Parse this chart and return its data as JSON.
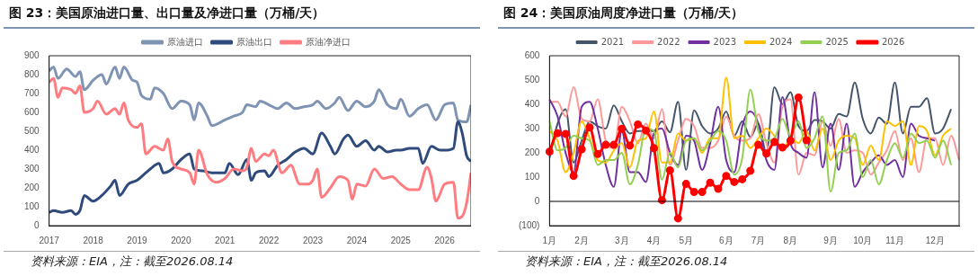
{
  "chart_data": [
    {
      "type": "line",
      "title": "图 23：美国原油进口量、出口量及净进口量（万桶/天）",
      "annotations": [
        "资料来源：EIA，注：截至2026.08.14"
      ],
      "xlim": [
        2017,
        2026.6
      ],
      "xticks": [
        2017,
        2018,
        2019,
        2020,
        2021,
        2022,
        2023,
        2024,
        2025,
        2026
      ],
      "ylim": [
        0,
        900
      ],
      "yticks": [
        0,
        100,
        200,
        300,
        400,
        500,
        600,
        700,
        800,
        900
      ],
      "grid": false,
      "legend": "top",
      "series": [
        {
          "name": "原油进口",
          "color": "#7f93b2",
          "x": [
            2017,
            2017.1,
            2017.2,
            2017.4,
            2017.6,
            2017.7,
            2017.8,
            2018,
            2018.2,
            2018.3,
            2018.5,
            2018.6,
            2018.7,
            2018.9,
            2019,
            2019.1,
            2019.3,
            2019.4,
            2019.6,
            2019.8,
            2020,
            2020.2,
            2020.3,
            2020.4,
            2020.6,
            2020.7,
            2021,
            2021.2,
            2021.4,
            2021.5,
            2021.7,
            2021.8,
            2022,
            2022.2,
            2022.4,
            2022.6,
            2022.8,
            2023,
            2023.1,
            2023.3,
            2023.5,
            2023.6,
            2023.8,
            2024,
            2024.2,
            2024.4,
            2024.5,
            2024.7,
            2024.9,
            2025,
            2025.2,
            2025.4,
            2025.6,
            2025.8,
            2026,
            2026.2,
            2026.3,
            2026.5,
            2026.6
          ],
          "values": [
            820,
            840,
            780,
            830,
            790,
            815,
            720,
            770,
            800,
            750,
            840,
            780,
            840,
            770,
            760,
            690,
            670,
            730,
            700,
            620,
            660,
            640,
            560,
            650,
            580,
            530,
            560,
            580,
            600,
            640,
            630,
            660,
            640,
            620,
            650,
            620,
            630,
            640,
            660,
            620,
            650,
            680,
            610,
            660,
            630,
            660,
            720,
            640,
            620,
            670,
            580,
            620,
            640,
            560,
            640,
            650,
            560,
            550,
            640
          ]
        },
        {
          "name": "原油出口",
          "color": "#2f4b7c",
          "x": [
            2017,
            2017.1,
            2017.3,
            2017.5,
            2017.6,
            2017.7,
            2017.8,
            2018,
            2018.2,
            2018.4,
            2018.5,
            2018.6,
            2018.8,
            2019,
            2019.2,
            2019.3,
            2019.5,
            2019.6,
            2019.8,
            2020,
            2020.2,
            2020.3,
            2020.5,
            2020.7,
            2021,
            2021.1,
            2021.3,
            2021.5,
            2021.6,
            2021.7,
            2021.9,
            2022,
            2022.2,
            2022.4,
            2022.6,
            2022.8,
            2023,
            2023.2,
            2023.4,
            2023.5,
            2023.7,
            2023.8,
            2024,
            2024.2,
            2024.4,
            2024.5,
            2024.7,
            2024.9,
            2025,
            2025.2,
            2025.4,
            2025.5,
            2025.7,
            2025.9,
            2026,
            2026.2,
            2026.3,
            2026.4,
            2026.5,
            2026.6
          ],
          "values": [
            70,
            80,
            70,
            80,
            60,
            80,
            160,
            130,
            160,
            210,
            240,
            160,
            220,
            240,
            280,
            300,
            330,
            280,
            300,
            350,
            380,
            300,
            290,
            280,
            280,
            330,
            270,
            350,
            240,
            280,
            290,
            260,
            320,
            350,
            390,
            410,
            380,
            490,
            420,
            380,
            460,
            480,
            420,
            450,
            400,
            420,
            390,
            400,
            400,
            410,
            410,
            330,
            420,
            400,
            400,
            410,
            550,
            490,
            370,
            340
          ]
        },
        {
          "name": "原油净进口",
          "color": "#ff7c80",
          "x": [
            2017,
            2017.1,
            2017.2,
            2017.3,
            2017.5,
            2017.6,
            2017.7,
            2017.8,
            2018,
            2018.1,
            2018.3,
            2018.5,
            2018.6,
            2018.7,
            2018.8,
            2019,
            2019.1,
            2019.2,
            2019.4,
            2019.6,
            2019.7,
            2019.8,
            2020,
            2020.2,
            2020.3,
            2020.4,
            2020.6,
            2020.8,
            2021,
            2021.2,
            2021.4,
            2021.5,
            2021.6,
            2021.7,
            2021.9,
            2022,
            2022.1,
            2022.3,
            2022.5,
            2022.7,
            2022.9,
            2023,
            2023.1,
            2023.2,
            2023.4,
            2023.6,
            2023.8,
            2023.9,
            2024,
            2024.2,
            2024.4,
            2024.6,
            2024.8,
            2025,
            2025.2,
            2025.4,
            2025.6,
            2025.7,
            2025.8,
            2026,
            2026.2,
            2026.3,
            2026.4,
            2026.5,
            2026.6
          ],
          "values": [
            760,
            780,
            680,
            730,
            720,
            700,
            740,
            600,
            620,
            660,
            590,
            620,
            590,
            650,
            560,
            520,
            540,
            380,
            420,
            400,
            460,
            340,
            300,
            280,
            220,
            400,
            270,
            230,
            250,
            300,
            290,
            310,
            410,
            340,
            380,
            370,
            400,
            280,
            320,
            220,
            220,
            240,
            300,
            150,
            200,
            260,
            240,
            140,
            220,
            210,
            300,
            250,
            260,
            220,
            190,
            190,
            310,
            250,
            130,
            220,
            230,
            40,
            50,
            120,
            280
          ]
        }
      ]
    },
    {
      "type": "line",
      "title": "图 24：美国原油周度净进口量（万桶/天）",
      "annotations": [
        "资料来源：EIA，注：截至2026.08.14"
      ],
      "categories": [
        "1月",
        null,
        null,
        null,
        "2月",
        null,
        null,
        null,
        null,
        "3月",
        null,
        null,
        null,
        "4月",
        null,
        null,
        null,
        "5月",
        null,
        null,
        null,
        null,
        "6月",
        null,
        null,
        null,
        "7月",
        null,
        null,
        null,
        "8月",
        null,
        null,
        null,
        null,
        "9月",
        null,
        null,
        null,
        "10月",
        null,
        null,
        null,
        "11月",
        null,
        null,
        null,
        null,
        "12月",
        null,
        null,
        null
      ],
      "ylim": [
        -100,
        600
      ],
      "yticks": [
        {
          "value": -100,
          "label": "(100)"
        },
        0,
        100,
        200,
        300,
        400,
        500,
        600
      ],
      "grid": false,
      "legend": "top",
      "ref_lines": [
        {
          "axis": "y",
          "value": 0,
          "color": "#000000"
        }
      ],
      "series": [
        {
          "name": "2021",
          "color": "#44546a",
          "values": [
            180,
            320,
            380,
            160,
            250,
            330,
            310,
            300,
            395,
            330,
            280,
            290,
            290,
            290,
            330,
            285,
            410,
            130,
            375,
            310,
            280,
            300,
            370,
            270,
            330,
            265,
            320,
            200,
            470,
            400,
            450,
            310,
            290,
            335,
            330,
            300,
            360,
            350,
            490,
            340,
            280,
            345,
            320,
            490,
            280,
            390,
            390,
            425,
            280,
            300,
            380,
            null
          ]
        },
        {
          "name": "2022",
          "color": "#ff9999",
          "values": [
            410,
            410,
            350,
            470,
            340,
            330,
            420,
            250,
            220,
            390,
            330,
            240,
            320,
            260,
            380,
            150,
            250,
            340,
            310,
            220,
            220,
            250,
            350,
            270,
            250,
            260,
            360,
            240,
            160,
            390,
            420,
            110,
            200,
            190,
            330,
            230,
            340,
            200,
            210,
            200,
            110,
            160,
            210,
            290,
            170,
            260,
            120,
            260,
            260,
            150,
            270,
            170
          ]
        },
        {
          "name": "2023",
          "color": "#7030a0",
          "values": [
            420,
            350,
            200,
            120,
            390,
            410,
            300,
            150,
            60,
            290,
            120,
            120,
            80,
            280,
            300,
            200,
            150,
            270,
            250,
            130,
            240,
            390,
            170,
            120,
            310,
            370,
            320,
            170,
            130,
            430,
            240,
            200,
            180,
            450,
            140,
            320,
            130,
            320,
            60,
            120,
            160,
            190,
            150,
            170,
            100,
            320,
            270,
            260,
            250,
            null,
            null,
            null
          ]
        },
        {
          "name": "2024",
          "color": "#ffc000",
          "values": [
            290,
            250,
            120,
            200,
            330,
            260,
            170,
            160,
            210,
            240,
            140,
            250,
            260,
            370,
            160,
            160,
            280,
            250,
            260,
            200,
            260,
            260,
            510,
            260,
            270,
            220,
            260,
            300,
            270,
            210,
            260,
            240,
            290,
            210,
            300,
            170,
            250,
            270,
            260,
            150,
            230,
            170,
            330,
            310,
            330,
            150,
            310,
            290,
            190,
            270,
            300,
            null
          ]
        },
        {
          "name": "2025",
          "color": "#92d050",
          "values": [
            330,
            210,
            220,
            270,
            260,
            250,
            150,
            170,
            170,
            200,
            70,
            150,
            300,
            290,
            90,
            200,
            140,
            250,
            260,
            210,
            250,
            290,
            250,
            110,
            180,
            460,
            290,
            250,
            260,
            340,
            270,
            330,
            220,
            260,
            350,
            40,
            200,
            210,
            280,
            100,
            170,
            70,
            170,
            240,
            180,
            280,
            240,
            250,
            180,
            250,
            150,
            null
          ]
        },
        {
          "name": "2026",
          "color": "#ff0000",
          "marker": "circle",
          "values": [
            205,
            281,
            278,
            105,
            215,
            305,
            195,
            233,
            233,
            299,
            230,
            317,
            292,
            219,
            5,
            128,
            -70,
            72,
            39,
            39,
            77,
            52,
            105,
            80,
            91,
            126,
            233,
            197,
            244,
            222,
            250,
            428,
            252,
            null,
            null,
            null,
            null,
            null,
            null,
            null,
            null,
            null,
            null,
            null,
            null,
            null,
            null,
            null,
            null,
            null,
            null,
            null
          ]
        }
      ]
    }
  ]
}
